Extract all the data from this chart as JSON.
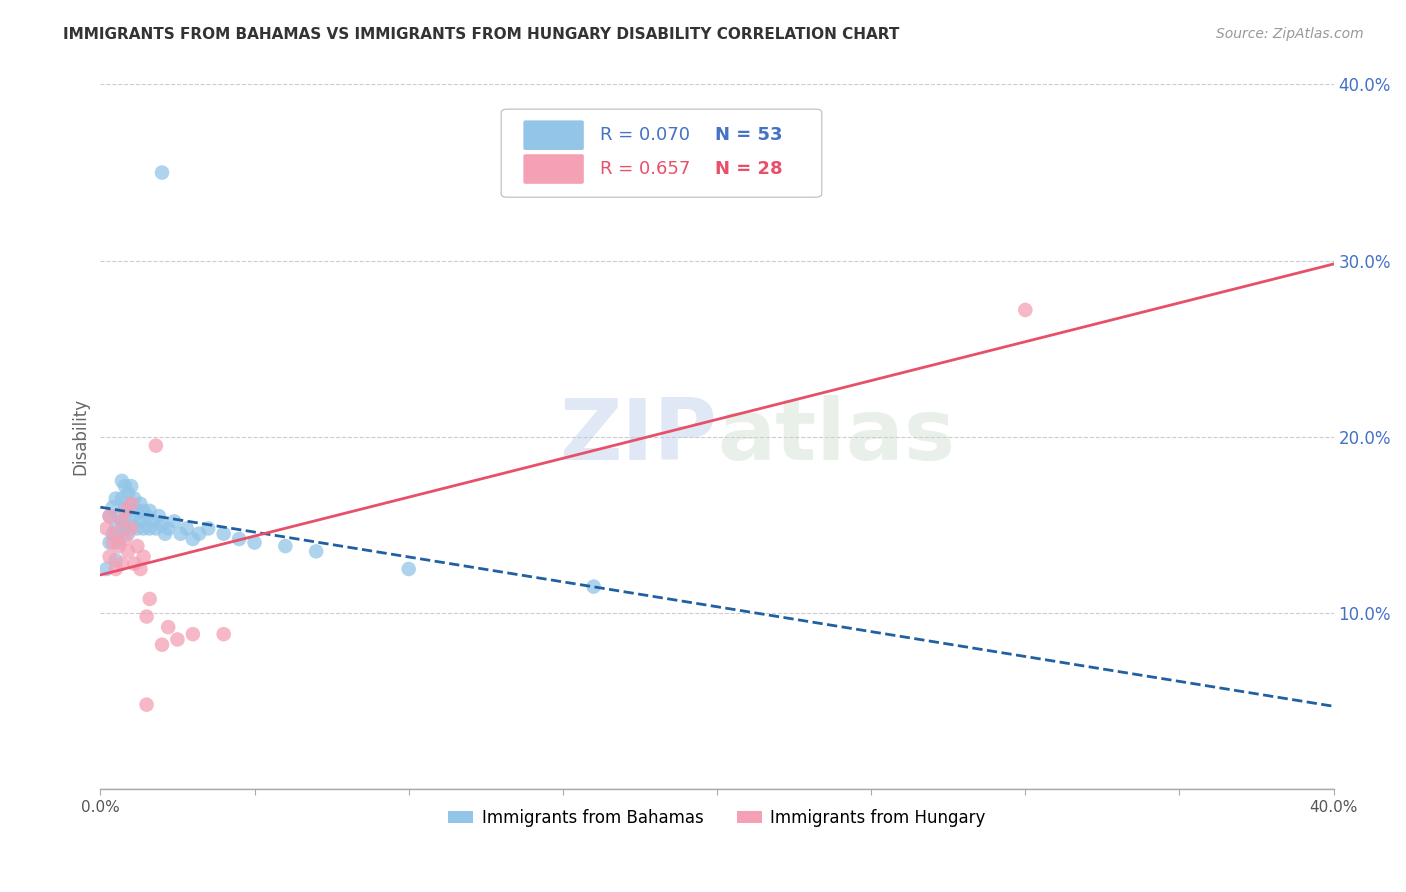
{
  "title": "IMMIGRANTS FROM BAHAMAS VS IMMIGRANTS FROM HUNGARY DISABILITY CORRELATION CHART",
  "source": "Source: ZipAtlas.com",
  "ylabel": "Disability",
  "xlim": [
    0.0,
    0.4
  ],
  "ylim": [
    0.0,
    0.4
  ],
  "grid_color": "#cccccc",
  "background_color": "#ffffff",
  "watermark_zip": "ZIP",
  "watermark_atlas": "atlas",
  "right_yticks": [
    0.1,
    0.2,
    0.3,
    0.4
  ],
  "right_yticklabels": [
    "10.0%",
    "20.0%",
    "30.0%",
    "40.0%"
  ],
  "series": [
    {
      "name": "Immigrants from Bahamas",
      "color": "#92C5E8",
      "R": 0.07,
      "N": 53,
      "line_color": "#2060A0",
      "line_style": "--",
      "points_x": [
        0.002,
        0.003,
        0.003,
        0.004,
        0.004,
        0.005,
        0.005,
        0.005,
        0.006,
        0.006,
        0.007,
        0.007,
        0.007,
        0.008,
        0.008,
        0.008,
        0.009,
        0.009,
        0.009,
        0.01,
        0.01,
        0.01,
        0.011,
        0.011,
        0.012,
        0.012,
        0.013,
        0.013,
        0.014,
        0.014,
        0.015,
        0.016,
        0.016,
        0.017,
        0.018,
        0.019,
        0.02,
        0.021,
        0.022,
        0.024,
        0.026,
        0.028,
        0.03,
        0.032,
        0.035,
        0.04,
        0.045,
        0.05,
        0.06,
        0.07,
        0.1,
        0.16,
        0.02
      ],
      "points_y": [
        0.125,
        0.14,
        0.155,
        0.145,
        0.16,
        0.13,
        0.148,
        0.165,
        0.14,
        0.155,
        0.152,
        0.165,
        0.175,
        0.148,
        0.16,
        0.172,
        0.145,
        0.158,
        0.168,
        0.15,
        0.162,
        0.172,
        0.155,
        0.165,
        0.148,
        0.158,
        0.152,
        0.162,
        0.148,
        0.158,
        0.155,
        0.148,
        0.158,
        0.152,
        0.148,
        0.155,
        0.15,
        0.145,
        0.148,
        0.152,
        0.145,
        0.148,
        0.142,
        0.145,
        0.148,
        0.145,
        0.142,
        0.14,
        0.138,
        0.135,
        0.125,
        0.115,
        0.35
      ]
    },
    {
      "name": "Immigrants from Hungary",
      "color": "#F4A0B5",
      "R": 0.657,
      "N": 28,
      "line_color": "#E8506A",
      "line_style": "-",
      "points_x": [
        0.002,
        0.003,
        0.003,
        0.004,
        0.005,
        0.005,
        0.006,
        0.007,
        0.007,
        0.008,
        0.008,
        0.009,
        0.01,
        0.01,
        0.011,
        0.012,
        0.013,
        0.014,
        0.015,
        0.016,
        0.018,
        0.02,
        0.022,
        0.025,
        0.03,
        0.04,
        0.3,
        0.015
      ],
      "points_y": [
        0.148,
        0.132,
        0.155,
        0.14,
        0.125,
        0.145,
        0.138,
        0.152,
        0.128,
        0.142,
        0.158,
        0.135,
        0.148,
        0.162,
        0.128,
        0.138,
        0.125,
        0.132,
        0.098,
        0.108,
        0.195,
        0.082,
        0.092,
        0.085,
        0.088,
        0.088,
        0.272,
        0.048
      ]
    }
  ]
}
